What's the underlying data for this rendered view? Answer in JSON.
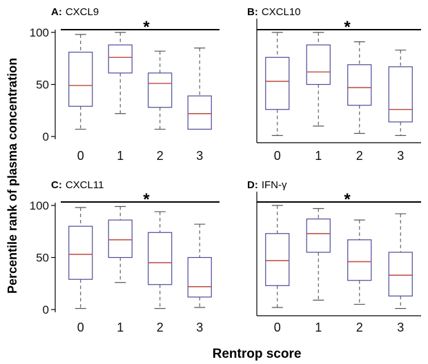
{
  "figure": {
    "ylabel": "Percentile rank of plasma concentration",
    "xlabel": "Rentrop score"
  },
  "chart_data": [
    {
      "type": "box",
      "panel_letter": "A:",
      "panel_name": "CXCL9",
      "categories": [
        "0",
        "1",
        "2",
        "3"
      ],
      "ylim": [
        0,
        100
      ],
      "yticks": [
        "0",
        "50",
        "100"
      ],
      "significance": "*",
      "boxes": [
        {
          "min": 7,
          "q1": 29,
          "median": 49,
          "q3": 81,
          "max": 98
        },
        {
          "min": 22,
          "q1": 61,
          "median": 76,
          "q3": 88,
          "max": 100
        },
        {
          "min": 7,
          "q1": 28,
          "median": 51,
          "q3": 61,
          "max": 82
        },
        {
          "min": 7,
          "q1": 7,
          "median": 22,
          "q3": 39,
          "max": 85
        }
      ]
    },
    {
      "type": "box",
      "panel_letter": "B:",
      "panel_name": "CXCL10",
      "categories": [
        "0",
        "1",
        "2",
        "3"
      ],
      "ylim": [
        0,
        100
      ],
      "significance": "*",
      "boxes": [
        {
          "min": 1,
          "q1": 26,
          "median": 53,
          "q3": 76,
          "max": 100
        },
        {
          "min": 10,
          "q1": 50,
          "median": 62,
          "q3": 88,
          "max": 100
        },
        {
          "min": 3,
          "q1": 30,
          "median": 47,
          "q3": 69,
          "max": 91
        },
        {
          "min": 1,
          "q1": 14,
          "median": 26,
          "q3": 67,
          "max": 83
        }
      ]
    },
    {
      "type": "box",
      "panel_letter": "C:",
      "panel_name": "CXCL11",
      "categories": [
        "0",
        "1",
        "2",
        "3"
      ],
      "ylim": [
        0,
        100
      ],
      "yticks": [
        "0",
        "50",
        "100"
      ],
      "significance": "*",
      "boxes": [
        {
          "min": 1,
          "q1": 29,
          "median": 53,
          "q3": 80,
          "max": 98
        },
        {
          "min": 26,
          "q1": 50,
          "median": 67,
          "q3": 86,
          "max": 99
        },
        {
          "min": 1,
          "q1": 24,
          "median": 45,
          "q3": 74,
          "max": 94
        },
        {
          "min": 2,
          "q1": 12,
          "median": 22,
          "q3": 50,
          "max": 82
        }
      ]
    },
    {
      "type": "box",
      "panel_letter": "D:",
      "panel_name": "IFN-γ",
      "categories": [
        "0",
        "1",
        "2",
        "3"
      ],
      "ylim": [
        0,
        100
      ],
      "significance": "*",
      "boxes": [
        {
          "min": 2,
          "q1": 23,
          "median": 47,
          "q3": 73,
          "max": 100
        },
        {
          "min": 9,
          "q1": 55,
          "median": 73,
          "q3": 87,
          "max": 97
        },
        {
          "min": 5,
          "q1": 28,
          "median": 46,
          "q3": 67,
          "max": 86
        },
        {
          "min": 1,
          "q1": 13,
          "median": 33,
          "q3": 55,
          "max": 92
        }
      ]
    }
  ],
  "colors": {
    "box_outline": "#4a4a9a",
    "median": "#c0564b",
    "whisker": "#555555",
    "axis": "#000000"
  }
}
